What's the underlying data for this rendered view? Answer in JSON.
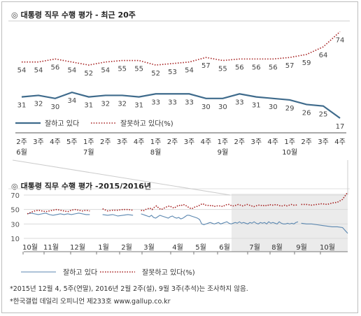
{
  "chart_data": [
    {
      "type": "line",
      "title": "대통령 직무 수행 평가 - 최근 20주",
      "title_mark": "◎",
      "legend_position": "bottom-left",
      "series": [
        {
          "name": "잘하고 있다",
          "color": "#3f6b8c",
          "style": "solid",
          "values": [
            31,
            32,
            30,
            34,
            31,
            32,
            32,
            31,
            33,
            33,
            33,
            30,
            30,
            33,
            31,
            30,
            29,
            26,
            25,
            17
          ]
        },
        {
          "name": "잘못하고 있다(%)",
          "color": "#a51e1e",
          "style": "dotted",
          "values": [
            54,
            54,
            56,
            54,
            52,
            54,
            55,
            55,
            52,
            53,
            54,
            57,
            55,
            56,
            56,
            56,
            57,
            59,
            64,
            74
          ]
        }
      ],
      "ticks": [
        {
          "week": "2주",
          "month": "6월"
        },
        {
          "week": "3주",
          "month": ""
        },
        {
          "week": "4주",
          "month": ""
        },
        {
          "week": "5주",
          "month": ""
        },
        {
          "week": "1주",
          "month": "7월"
        },
        {
          "week": "2주",
          "month": ""
        },
        {
          "week": "3주",
          "month": ""
        },
        {
          "week": "4주",
          "month": ""
        },
        {
          "week": "1주",
          "month": "8월"
        },
        {
          "week": "2주",
          "month": ""
        },
        {
          "week": "3주",
          "month": ""
        },
        {
          "week": "4주",
          "month": ""
        },
        {
          "week": "1주",
          "month": "9월"
        },
        {
          "week": "2주",
          "month": ""
        },
        {
          "week": "3주",
          "month": ""
        },
        {
          "week": "4주",
          "month": ""
        },
        {
          "week": "1주",
          "month": "10월"
        },
        {
          "week": "2주",
          "month": ""
        },
        {
          "week": "3주",
          "month": ""
        },
        {
          "week": "4주",
          "month": ""
        }
      ]
    },
    {
      "type": "line",
      "title": "대통령 직무 수행 평가 -2015/2016년",
      "title_mark": "◎",
      "y_ticks": [
        70,
        50,
        30,
        10
      ],
      "ylim": [
        10,
        70
      ],
      "grid": true,
      "x_labels": [
        "10월",
        "11월",
        "12월",
        "1월",
        "2월",
        "3월",
        "4월",
        "5월",
        "6월",
        "7월",
        "8월",
        "9월",
        "10월"
      ],
      "highlight_note": "shaded region covers the recent 20 weeks",
      "legend_position": "bottom",
      "series": [
        {
          "name": "잘하고 있다",
          "color": "#5b87b0",
          "style": "solid",
          "segments": [
            [
              44,
              45,
              44,
              43,
              44,
              45,
              43,
              42,
              43,
              44,
              43,
              44,
              43,
              44,
              45,
              44,
              43,
              43
            ],
            [
              43,
              42,
              43,
              41,
              42,
              43,
              42
            ],
            [
              44,
              43,
              42,
              41,
              40,
              42,
              39,
              38,
              40,
              42,
              41,
              40,
              39,
              38,
              40,
              41,
              39,
              38,
              39,
              37,
              38,
              40,
              42,
              42,
              41,
              40,
              39,
              38,
              36,
              30,
              29,
              30,
              31,
              32,
              31,
              30,
              31,
              32,
              30,
              31,
              32,
              33,
              31,
              30,
              31,
              32,
              31,
              33,
              31,
              32,
              31,
              30,
              32,
              31,
              33,
              31,
              30,
              32,
              31,
              32,
              30,
              33,
              31,
              32,
              31,
              30,
              33,
              31,
              30,
              30,
              31,
              30,
              31,
              30,
              32,
              33
            ],
            [
              31,
              30,
              30,
              29,
              28,
              27,
              26,
              26,
              25,
              17
            ]
          ]
        },
        {
          "name": "잘못하고 있다(%)",
          "color": "#a51e1e",
          "style": "dotted",
          "segments": [
            [
              44,
              46,
              48,
              49,
              48,
              47,
              48,
              49,
              50,
              49,
              48,
              47,
              49,
              50,
              49,
              48,
              49,
              48
            ],
            [
              51,
              48,
              49,
              49,
              50,
              50,
              49
            ],
            [
              49,
              48,
              50,
              51,
              52,
              50,
              53,
              55,
              52,
              50,
              51,
              53,
              54,
              55,
              53,
              52,
              54,
              56,
              55,
              57,
              56,
              54,
              52,
              51,
              53,
              54,
              55,
              57,
              58,
              56,
              56,
              55,
              56,
              54,
              55,
              55,
              55,
              54,
              56,
              57,
              57,
              55,
              55,
              56,
              57,
              56,
              55,
              56,
              57,
              56,
              55,
              54,
              55,
              56,
              56,
              55,
              56,
              55,
              57,
              56,
              56,
              57,
              56,
              55,
              55,
              56,
              55,
              56,
              57,
              56,
              56,
              57
            ],
            [
              57,
              57,
              56,
              57,
              58,
              57,
              59,
              60,
              64,
              74
            ]
          ]
        }
      ]
    }
  ],
  "footnotes": [
    "*2015년 12월 4, 5주(연말), 2016년 2월 2주(설), 9월 3주(추석)는 조사하지 않음.",
    "*한국갤럽 데일리 오피니언 제233호 www.gallup.co.kr"
  ]
}
